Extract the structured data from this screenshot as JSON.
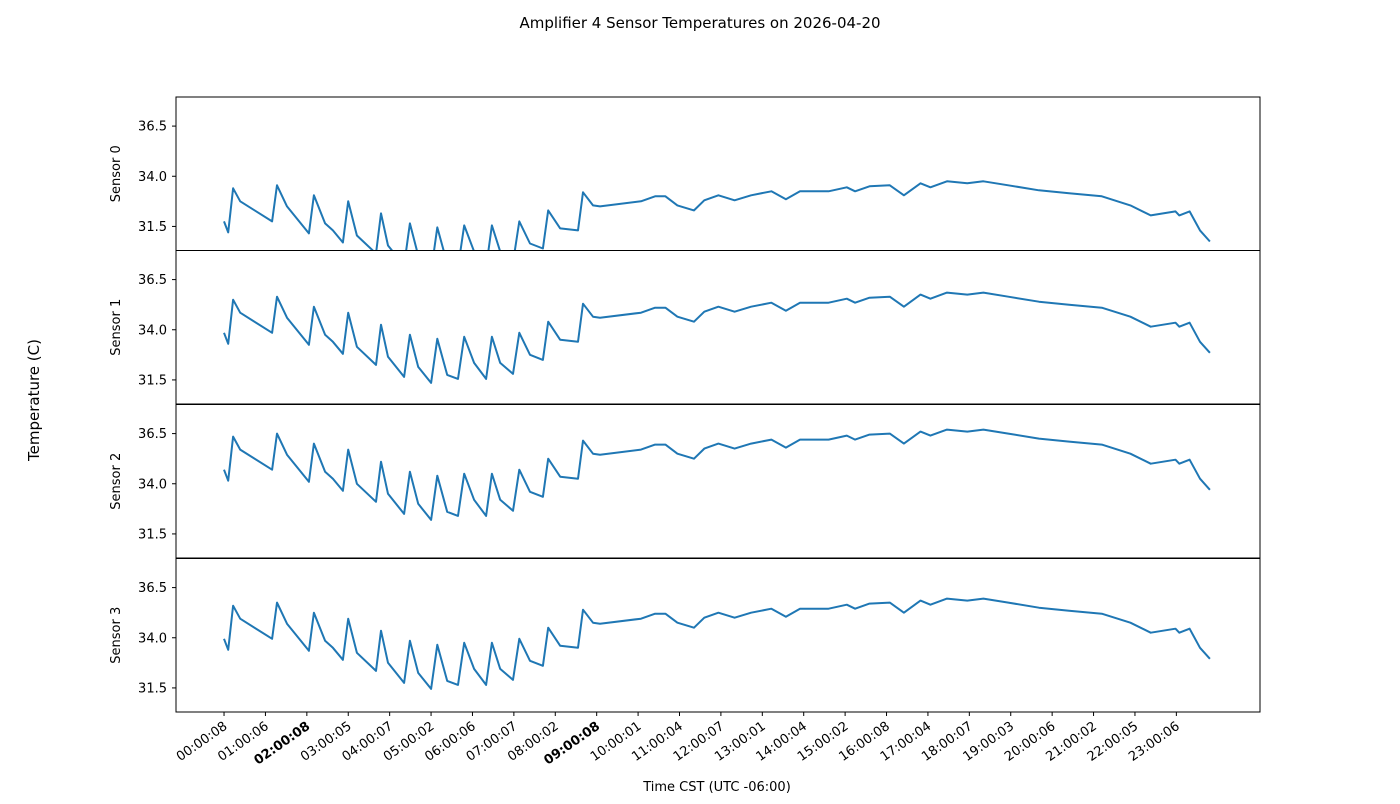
{
  "chart_data": {
    "type": "line",
    "title": "Amplifier 4 Sensor Temperatures on 2026-04-20",
    "xlabel": "Time CST (UTC -06:00)",
    "ylabel": "Temperature (C)",
    "xlim": [
      -1.16,
      25.02
    ],
    "ylim": [
      30.3,
      37.95
    ],
    "yticks": [
      31.5,
      34.0,
      36.5
    ],
    "ytick_labels": [
      "31.5",
      "34.0",
      "36.5"
    ],
    "xticks": [
      0,
      1,
      2,
      3,
      4,
      5,
      6,
      7,
      8,
      9,
      10,
      11,
      12,
      13,
      14,
      15,
      16,
      17,
      18,
      19,
      20,
      21,
      22,
      23
    ],
    "xtick_labels": [
      "00:00:08",
      "01:00:06",
      "02:00:08",
      "03:00:05",
      "04:00:07",
      "05:00:02",
      "06:00:06",
      "07:00:07",
      "08:00:02",
      "09:00:08",
      "10:00:01",
      "11:00:04",
      "12:00:07",
      "13:00:01",
      "14:00:04",
      "15:00:02",
      "16:00:08",
      "17:00:04",
      "18:00:07",
      "19:00:03",
      "20:00:06",
      "21:00:02",
      "22:00:05",
      "23:00:06"
    ],
    "x_hours": [
      0,
      0.1,
      0.22,
      0.39,
      1.16,
      1.28,
      1.52,
      2.05,
      2.17,
      2.44,
      2.63,
      2.87,
      3.0,
      3.21,
      3.67,
      3.79,
      3.96,
      4.35,
      4.49,
      4.69,
      5.0,
      5.15,
      5.39,
      5.65,
      5.8,
      6.04,
      6.33,
      6.47,
      6.67,
      6.98,
      7.13,
      7.39,
      7.7,
      7.83,
      8.12,
      8.55,
      8.67,
      8.91,
      9.08,
      10.07,
      10.41,
      10.66,
      10.95,
      11.35,
      11.6,
      11.94,
      12.33,
      12.73,
      13.22,
      13.57,
      13.91,
      14.6,
      15.04,
      15.24,
      15.59,
      16.08,
      16.42,
      16.82,
      17.06,
      17.46,
      17.95,
      18.34,
      18.94,
      19.68,
      20.41,
      21.2,
      21.89,
      22.38,
      22.98,
      23.07,
      23.32,
      23.57,
      23.81
    ],
    "series": [
      {
        "name": "Sensor 0",
        "color": "#1f77b4",
        "values": [
          31.75,
          31.2,
          33.4,
          32.75,
          31.75,
          33.55,
          32.5,
          31.15,
          33.05,
          31.65,
          31.3,
          30.7,
          32.75,
          31.05,
          30.15,
          32.15,
          30.55,
          29.55,
          31.65,
          30.05,
          29.25,
          31.45,
          29.65,
          29.45,
          31.55,
          30.25,
          29.45,
          31.55,
          30.25,
          29.7,
          31.75,
          30.65,
          30.4,
          32.3,
          31.4,
          31.3,
          33.2,
          32.55,
          32.5,
          32.75,
          33.0,
          33.0,
          32.55,
          32.3,
          32.8,
          33.05,
          32.8,
          33.05,
          33.25,
          32.85,
          33.25,
          33.25,
          33.45,
          33.25,
          33.5,
          33.55,
          33.05,
          33.65,
          33.45,
          33.75,
          33.65,
          33.75,
          33.55,
          33.3,
          33.15,
          33.0,
          32.55,
          32.05,
          32.25,
          32.05,
          32.25,
          31.3,
          30.75
        ]
      },
      {
        "name": "Sensor 1",
        "color": "#1f77b4",
        "values": [
          33.85,
          33.3,
          35.5,
          34.85,
          33.85,
          35.65,
          34.6,
          33.25,
          35.15,
          33.75,
          33.4,
          32.8,
          34.85,
          33.15,
          32.25,
          34.25,
          32.65,
          31.65,
          33.75,
          32.15,
          31.35,
          33.55,
          31.75,
          31.55,
          33.65,
          32.35,
          31.55,
          33.65,
          32.35,
          31.8,
          33.85,
          32.75,
          32.5,
          34.4,
          33.5,
          33.4,
          35.3,
          34.65,
          34.6,
          34.85,
          35.1,
          35.1,
          34.65,
          34.4,
          34.9,
          35.15,
          34.9,
          35.15,
          35.35,
          34.95,
          35.35,
          35.35,
          35.55,
          35.35,
          35.6,
          35.65,
          35.15,
          35.75,
          35.55,
          35.85,
          35.75,
          35.85,
          35.65,
          35.4,
          35.25,
          35.1,
          34.65,
          34.15,
          34.35,
          34.15,
          34.35,
          33.4,
          32.85
        ]
      },
      {
        "name": "Sensor 2",
        "color": "#1f77b4",
        "values": [
          34.7,
          34.15,
          36.35,
          35.7,
          34.7,
          36.5,
          35.45,
          34.1,
          36.0,
          34.6,
          34.25,
          33.65,
          35.7,
          34.0,
          33.1,
          35.1,
          33.5,
          32.5,
          34.6,
          33.0,
          32.2,
          34.4,
          32.6,
          32.4,
          34.5,
          33.2,
          32.4,
          34.5,
          33.2,
          32.65,
          34.7,
          33.6,
          33.35,
          35.25,
          34.35,
          34.25,
          36.15,
          35.5,
          35.45,
          35.7,
          35.95,
          35.95,
          35.5,
          35.25,
          35.75,
          36.0,
          35.75,
          36.0,
          36.2,
          35.8,
          36.2,
          36.2,
          36.4,
          36.2,
          36.45,
          36.5,
          36.0,
          36.6,
          36.4,
          36.7,
          36.6,
          36.7,
          36.5,
          36.25,
          36.1,
          35.95,
          35.5,
          35.0,
          35.2,
          35.0,
          35.2,
          34.25,
          33.7
        ]
      },
      {
        "name": "Sensor 3",
        "color": "#1f77b4",
        "values": [
          33.95,
          33.4,
          35.6,
          34.95,
          33.95,
          35.75,
          34.7,
          33.35,
          35.25,
          33.85,
          33.5,
          32.9,
          34.95,
          33.25,
          32.35,
          34.35,
          32.75,
          31.75,
          33.85,
          32.25,
          31.45,
          33.65,
          31.85,
          31.65,
          33.75,
          32.45,
          31.65,
          33.75,
          32.45,
          31.9,
          33.95,
          32.85,
          32.6,
          34.5,
          33.6,
          33.5,
          35.4,
          34.75,
          34.7,
          34.95,
          35.2,
          35.2,
          34.75,
          34.5,
          35.0,
          35.25,
          35.0,
          35.25,
          35.45,
          35.05,
          35.45,
          35.45,
          35.65,
          35.45,
          35.7,
          35.75,
          35.25,
          35.85,
          35.65,
          35.95,
          35.85,
          35.95,
          35.75,
          35.5,
          35.35,
          35.2,
          34.75,
          34.25,
          34.45,
          34.25,
          34.45,
          33.5,
          32.95
        ]
      }
    ],
    "grid": false,
    "legend": "none"
  }
}
